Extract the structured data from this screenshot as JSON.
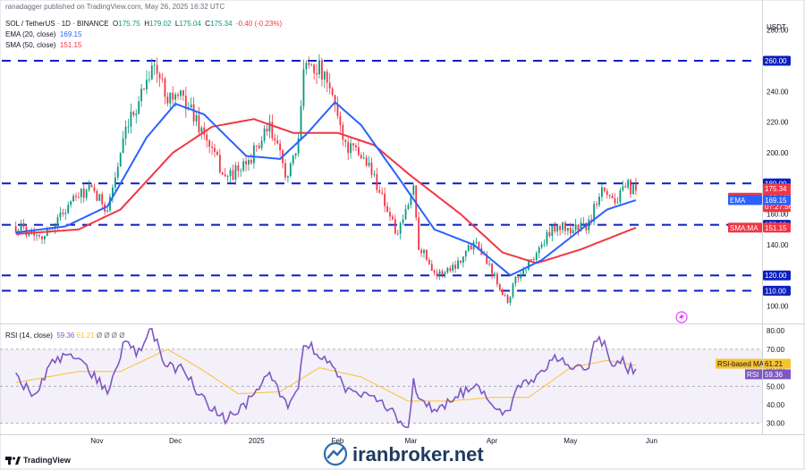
{
  "header": {
    "published": "ranadagger published on TradingView.com, May 26, 2025 16:32 UTC",
    "symbol": "SOL / TetherUS · 1D · BINANCE",
    "o_label": "O",
    "o": "175.75",
    "h_label": "H",
    "h": "179.02",
    "l_label": "L",
    "l": "175.04",
    "c_label": "C",
    "c": "175.34",
    "change": "-0.40 (-0.23%)",
    "ema_label": "EMA (20, close)",
    "ema_value": "169.15",
    "sma_label": "SMA (50, close)",
    "sma_value": "151.15",
    "rsi_label": "RSI (14, close)",
    "rsi_value": "59.36",
    "rsi_ma_value": "61.21",
    "rsi_extra": "Ø Ø Ø Ø"
  },
  "currency": "USDT",
  "footer": {
    "brand": "TradingView",
    "watermark": "iranbroker.net"
  },
  "colors": {
    "up": "#089981",
    "down": "#f23645",
    "ema": "#2962ff",
    "sma": "#f23645",
    "rsi": "#7e57c2",
    "rsi_ma": "#f7c331",
    "level": "#0b1fbf"
  },
  "chart_data": [
    {
      "type": "candlestick",
      "title": "SOL / TetherUS · 1D · BINANCE",
      "x_labels": [
        "Nov",
        "Dec",
        "2025",
        "Feb",
        "Mar",
        "Apr",
        "May",
        "Jun"
      ],
      "y_ticks": [
        100,
        120,
        140,
        160,
        180,
        200,
        220,
        240,
        260,
        280
      ],
      "ylim": [
        91,
        295
      ],
      "grid": false,
      "horizontal_levels": [
        260,
        180,
        153,
        120,
        110
      ],
      "last_price_tag": {
        "label": "SOLUSDT",
        "value": "175.34",
        "change": "+28.16%",
        "countdown": "07:27:56"
      },
      "ema_tag": {
        "label": "EMA",
        "value": "169.15"
      },
      "sma_tag": {
        "label": "SMA:MA",
        "value": "151.15"
      },
      "close_anchors": [
        {
          "date": "2024-10-01",
          "close": 152
        },
        {
          "date": "2024-10-12",
          "close": 146
        },
        {
          "date": "2024-10-22",
          "close": 168
        },
        {
          "date": "2024-10-29",
          "close": 176
        },
        {
          "date": "2024-11-05",
          "close": 164
        },
        {
          "date": "2024-11-12",
          "close": 212
        },
        {
          "date": "2024-11-22",
          "close": 258
        },
        {
          "date": "2024-11-28",
          "close": 238
        },
        {
          "date": "2024-12-05",
          "close": 234
        },
        {
          "date": "2024-12-10",
          "close": 218
        },
        {
          "date": "2024-12-20",
          "close": 184
        },
        {
          "date": "2024-12-27",
          "close": 190
        },
        {
          "date": "2025-01-06",
          "close": 216
        },
        {
          "date": "2025-01-13",
          "close": 184
        },
        {
          "date": "2025-01-17",
          "close": 205
        },
        {
          "date": "2025-01-19",
          "close": 260
        },
        {
          "date": "2025-01-25",
          "close": 255
        },
        {
          "date": "2025-01-31",
          "close": 232
        },
        {
          "date": "2025-02-04",
          "close": 205
        },
        {
          "date": "2025-02-12",
          "close": 195
        },
        {
          "date": "2025-02-18",
          "close": 172
        },
        {
          "date": "2025-02-24",
          "close": 145
        },
        {
          "date": "2025-03-02",
          "close": 178
        },
        {
          "date": "2025-03-04",
          "close": 140
        },
        {
          "date": "2025-03-11",
          "close": 120
        },
        {
          "date": "2025-03-18",
          "close": 127
        },
        {
          "date": "2025-03-26",
          "close": 144
        },
        {
          "date": "2025-03-31",
          "close": 126
        },
        {
          "date": "2025-04-07",
          "close": 103
        },
        {
          "date": "2025-04-10",
          "close": 117
        },
        {
          "date": "2025-04-16",
          "close": 130
        },
        {
          "date": "2025-04-25",
          "close": 152
        },
        {
          "date": "2025-05-01",
          "close": 150
        },
        {
          "date": "2025-05-08",
          "close": 153
        },
        {
          "date": "2025-05-13",
          "close": 180
        },
        {
          "date": "2025-05-18",
          "close": 168
        },
        {
          "date": "2025-05-23",
          "close": 178
        },
        {
          "date": "2025-05-26",
          "close": 175.34
        }
      ],
      "ema20_anchors": [
        {
          "date": "2024-10-01",
          "value": 148
        },
        {
          "date": "2024-10-20",
          "value": 152
        },
        {
          "date": "2024-11-05",
          "value": 165
        },
        {
          "date": "2024-11-20",
          "value": 210
        },
        {
          "date": "2024-12-01",
          "value": 232
        },
        {
          "date": "2024-12-12",
          "value": 225
        },
        {
          "date": "2024-12-28",
          "value": 198
        },
        {
          "date": "2025-01-10",
          "value": 196
        },
        {
          "date": "2025-01-20",
          "value": 212
        },
        {
          "date": "2025-01-31",
          "value": 233
        },
        {
          "date": "2025-02-10",
          "value": 218
        },
        {
          "date": "2025-02-25",
          "value": 182
        },
        {
          "date": "2025-03-10",
          "value": 150
        },
        {
          "date": "2025-03-25",
          "value": 140
        },
        {
          "date": "2025-04-08",
          "value": 120
        },
        {
          "date": "2025-04-20",
          "value": 130
        },
        {
          "date": "2025-05-05",
          "value": 150
        },
        {
          "date": "2025-05-15",
          "value": 163
        },
        {
          "date": "2025-05-26",
          "value": 169.15
        }
      ],
      "sma50_anchors": [
        {
          "date": "2024-10-01",
          "value": 147
        },
        {
          "date": "2024-10-25",
          "value": 150
        },
        {
          "date": "2024-11-10",
          "value": 163
        },
        {
          "date": "2024-11-30",
          "value": 200
        },
        {
          "date": "2024-12-15",
          "value": 217
        },
        {
          "date": "2024-12-31",
          "value": 222
        },
        {
          "date": "2025-01-15",
          "value": 213
        },
        {
          "date": "2025-02-01",
          "value": 213
        },
        {
          "date": "2025-02-15",
          "value": 205
        },
        {
          "date": "2025-03-01",
          "value": 185
        },
        {
          "date": "2025-03-20",
          "value": 160
        },
        {
          "date": "2025-04-05",
          "value": 135
        },
        {
          "date": "2025-04-18",
          "value": 128
        },
        {
          "date": "2025-05-05",
          "value": 137
        },
        {
          "date": "2025-05-26",
          "value": 151.15
        }
      ]
    },
    {
      "type": "line",
      "title": "RSI (14, close)",
      "y_ticks": [
        30,
        40,
        50,
        60,
        70,
        80
      ],
      "band": [
        30,
        70
      ],
      "ylim": [
        26,
        82
      ],
      "rsi_tag": {
        "label": "RSI",
        "value": "59.36"
      },
      "rsi_ma_tag": {
        "label": "RSI-based MA",
        "value": "61.21"
      },
      "rsi_anchors": [
        {
          "date": "2024-10-01",
          "value": 55
        },
        {
          "date": "2024-10-08",
          "value": 46
        },
        {
          "date": "2024-10-15",
          "value": 62
        },
        {
          "date": "2024-10-22",
          "value": 68
        },
        {
          "date": "2024-10-29",
          "value": 58
        },
        {
          "date": "2024-11-05",
          "value": 48
        },
        {
          "date": "2024-11-12",
          "value": 75
        },
        {
          "date": "2024-11-16",
          "value": 68
        },
        {
          "date": "2024-11-22",
          "value": 80
        },
        {
          "date": "2024-11-27",
          "value": 62
        },
        {
          "date": "2024-12-05",
          "value": 58
        },
        {
          "date": "2024-12-10",
          "value": 45
        },
        {
          "date": "2024-12-20",
          "value": 32
        },
        {
          "date": "2024-12-27",
          "value": 38
        },
        {
          "date": "2025-01-06",
          "value": 57
        },
        {
          "date": "2025-01-13",
          "value": 40
        },
        {
          "date": "2025-01-17",
          "value": 50
        },
        {
          "date": "2025-01-19",
          "value": 74
        },
        {
          "date": "2025-01-25",
          "value": 68
        },
        {
          "date": "2025-01-31",
          "value": 60
        },
        {
          "date": "2025-02-04",
          "value": 48
        },
        {
          "date": "2025-02-12",
          "value": 45
        },
        {
          "date": "2025-02-20",
          "value": 38
        },
        {
          "date": "2025-02-28",
          "value": 28
        },
        {
          "date": "2025-03-02",
          "value": 55
        },
        {
          "date": "2025-03-04",
          "value": 42
        },
        {
          "date": "2025-03-11",
          "value": 37
        },
        {
          "date": "2025-03-18",
          "value": 45
        },
        {
          "date": "2025-03-26",
          "value": 50
        },
        {
          "date": "2025-03-31",
          "value": 42
        },
        {
          "date": "2025-04-07",
          "value": 34
        },
        {
          "date": "2025-04-11",
          "value": 50
        },
        {
          "date": "2025-04-18",
          "value": 55
        },
        {
          "date": "2025-04-25",
          "value": 67
        },
        {
          "date": "2025-05-01",
          "value": 60
        },
        {
          "date": "2025-05-07",
          "value": 58
        },
        {
          "date": "2025-05-11",
          "value": 77
        },
        {
          "date": "2025-05-14",
          "value": 72
        },
        {
          "date": "2025-05-17",
          "value": 58
        },
        {
          "date": "2025-05-21",
          "value": 64
        },
        {
          "date": "2025-05-23",
          "value": 60
        },
        {
          "date": "2025-05-26",
          "value": 59.36
        }
      ],
      "rsi_ma_anchors": [
        {
          "date": "2024-10-01",
          "value": 52
        },
        {
          "date": "2024-10-25",
          "value": 58
        },
        {
          "date": "2024-11-10",
          "value": 58
        },
        {
          "date": "2024-11-28",
          "value": 70
        },
        {
          "date": "2024-12-10",
          "value": 60
        },
        {
          "date": "2024-12-25",
          "value": 46
        },
        {
          "date": "2025-01-10",
          "value": 47
        },
        {
          "date": "2025-01-25",
          "value": 60
        },
        {
          "date": "2025-02-10",
          "value": 55
        },
        {
          "date": "2025-02-28",
          "value": 42
        },
        {
          "date": "2025-03-15",
          "value": 42
        },
        {
          "date": "2025-04-01",
          "value": 44
        },
        {
          "date": "2025-04-15",
          "value": 44
        },
        {
          "date": "2025-05-01",
          "value": 60
        },
        {
          "date": "2025-05-15",
          "value": 64
        },
        {
          "date": "2025-05-26",
          "value": 61.21
        }
      ]
    }
  ]
}
